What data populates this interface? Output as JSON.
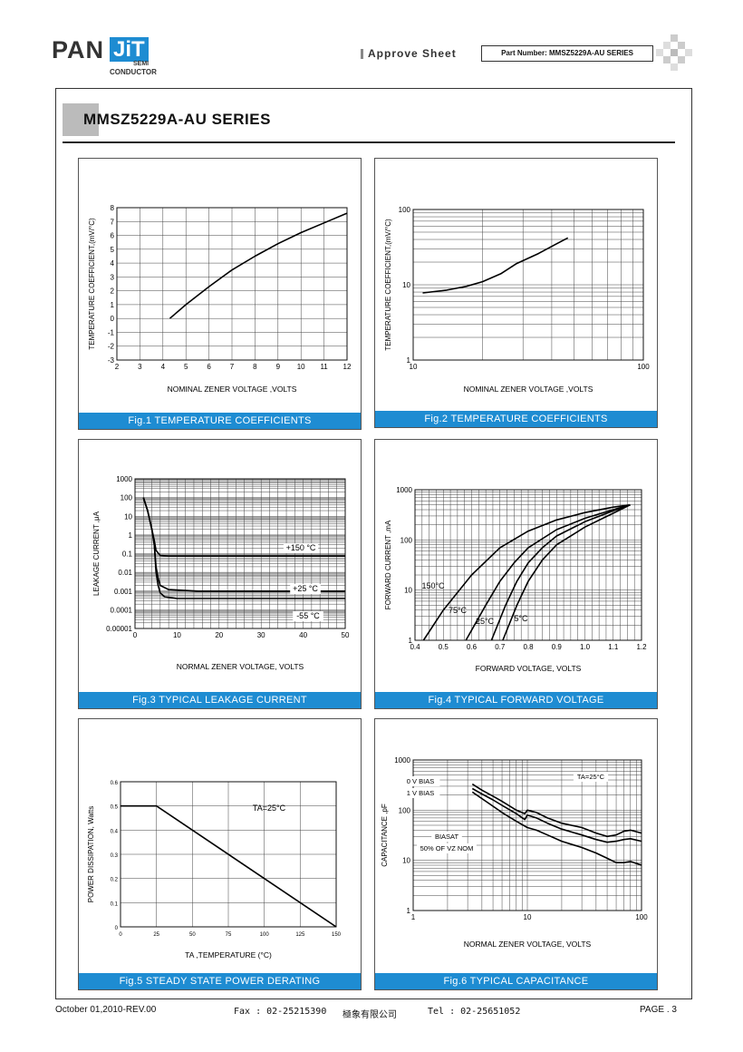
{
  "header": {
    "logo_pan": "PAN",
    "logo_jit": "JiT",
    "logo_semi": "SEMI",
    "logo_conductor": "CONDUCTOR",
    "approve_sheet": "Approve Sheet",
    "part_number": "Part Number: MMSZ5229A-AU SERIES"
  },
  "page_title": "MMSZ5229A-AU SERIES",
  "figures": [
    {
      "caption": "Fig.1 TEMPERATURE COEFFICIENTS",
      "xlabel": "NOMINAL ZENER VOLTAGE ,VOLTS",
      "ylabel": "TEMPERATURE COEFFICIENT,(mV/°C)"
    },
    {
      "caption": "Fig.2 TEMPERATURE COEFFICIENTS",
      "xlabel": "NOMINAL ZENER VOLTAGE ,VOLTS",
      "ylabel": "TEMPERATURE COEFFICIENT,(mV/°C)"
    },
    {
      "caption": "Fig.3 TYPICAL LEAKAGE CURRENT",
      "xlabel": "NORMAL ZENER VOLTAGE, VOLTS",
      "ylabel": "LEAKAGE CURRENT ,μA"
    },
    {
      "caption": "Fig.4 TYPICAL FORWARD VOLTAGE",
      "xlabel": "FORWARD VOLTAGE, VOLTS",
      "ylabel": "FORWARD CURRENT ,mA"
    },
    {
      "caption": "Fig.5 STEADY STATE POWER DERATING",
      "xlabel": "TA ,TEMPERATURE (°C)",
      "ylabel": "POWER DISSIPATION, Watts"
    },
    {
      "caption": "Fig.6 TYPICAL CAPACITANCE",
      "xlabel": "NORMAL ZENER VOLTAGE, VOLTS",
      "ylabel": "CAPACITANCE ,pF"
    }
  ],
  "chart_data": [
    {
      "type": "line",
      "xlim": [
        2,
        12
      ],
      "ylim": [
        -3,
        8
      ],
      "xticks": [
        "2",
        "3",
        "4",
        "5",
        "6",
        "7",
        "8",
        "9",
        "10",
        "11",
        "12"
      ],
      "yticks": [
        "-3",
        "-2",
        "-1",
        "0",
        "1",
        "2",
        "3",
        "4",
        "5",
        "6",
        "7",
        "8"
      ],
      "series": [
        {
          "x": [
            4.3,
            5,
            6,
            7,
            8,
            9,
            10,
            11,
            12
          ],
          "y": [
            0,
            1.0,
            2.3,
            3.5,
            4.5,
            5.4,
            6.2,
            6.9,
            7.6
          ]
        }
      ]
    },
    {
      "type": "line",
      "xscale": "log",
      "yscale": "log",
      "xlim": [
        10,
        100
      ],
      "ylim": [
        1,
        100
      ],
      "xticks": [
        "10",
        "100"
      ],
      "yticks": [
        "1",
        "10",
        "100"
      ],
      "series": [
        {
          "x": [
            11,
            14,
            17,
            20,
            24,
            28,
            35,
            42,
            47
          ],
          "y": [
            7.8,
            8.5,
            9.5,
            11,
            14,
            19,
            26,
            35,
            42
          ]
        }
      ]
    },
    {
      "type": "line",
      "yscale": "log",
      "xlim": [
        0,
        50
      ],
      "ylim": [
        1e-05,
        1000
      ],
      "xticks": [
        "0",
        "10",
        "20",
        "30",
        "40",
        "50"
      ],
      "yticks": [
        "0.00001",
        "0.0001",
        "0.001",
        "0.01",
        "0.1",
        "1",
        "10",
        "100",
        "1000"
      ],
      "annotations": [
        "+150 °C",
        "+25 °C",
        "-55 °C"
      ],
      "series": [
        {
          "x": [
            2,
            3,
            4,
            4.6,
            5,
            6,
            8,
            15,
            30,
            50
          ],
          "y": [
            100,
            20,
            2,
            0.5,
            0.15,
            0.08,
            0.075,
            0.075,
            0.075,
            0.075
          ]
        },
        {
          "x": [
            2,
            3,
            4,
            4.6,
            5,
            5.5,
            6,
            8,
            15,
            30,
            50
          ],
          "y": [
            100,
            20,
            2,
            0.3,
            0.02,
            0.005,
            0.002,
            0.0012,
            0.001,
            0.001,
            0.001
          ]
        },
        {
          "x": [
            2,
            3,
            4,
            4.6,
            5,
            5.5,
            6,
            7,
            10,
            20,
            50
          ],
          "y": [
            100,
            20,
            2,
            0.3,
            0.01,
            0.002,
            0.0008,
            0.0005,
            0.0004,
            0.0004,
            0.0004
          ]
        }
      ]
    },
    {
      "type": "line",
      "yscale": "log",
      "xlim": [
        0.4,
        1.2
      ],
      "ylim": [
        1,
        1000
      ],
      "xticks": [
        "0.4",
        "0.5",
        "0.6",
        "0.7",
        "0.8",
        "0.9",
        "1.0",
        "1.1",
        "1.2"
      ],
      "yticks": [
        "1",
        "10",
        "100",
        "1000"
      ],
      "annotations": [
        "150°C",
        "75°C",
        "25°C",
        "5°C"
      ],
      "series": [
        {
          "x": [
            0.43,
            0.5,
            0.6,
            0.7,
            0.8,
            0.9,
            1.0,
            1.1,
            1.16
          ],
          "y": [
            1,
            4,
            20,
            70,
            150,
            250,
            350,
            450,
            500
          ]
        },
        {
          "x": [
            0.58,
            0.65,
            0.7,
            0.75,
            0.8,
            0.9,
            1.0,
            1.1,
            1.16
          ],
          "y": [
            1,
            5,
            15,
            35,
            70,
            160,
            270,
            400,
            500
          ]
        },
        {
          "x": [
            0.67,
            0.72,
            0.76,
            0.8,
            0.85,
            0.9,
            1.0,
            1.1,
            1.16
          ],
          "y": [
            1,
            5,
            15,
            35,
            70,
            120,
            230,
            380,
            500
          ]
        },
        {
          "x": [
            0.71,
            0.76,
            0.8,
            0.85,
            0.9,
            1.0,
            1.1,
            1.16
          ],
          "y": [
            1,
            5,
            15,
            40,
            80,
            180,
            340,
            500
          ]
        }
      ]
    },
    {
      "type": "line",
      "xlim": [
        0,
        150
      ],
      "ylim": [
        0,
        0.6
      ],
      "xticks": [
        "0",
        "25",
        "50",
        "75",
        "100",
        "125",
        "150"
      ],
      "yticks": [
        "0",
        "0.1",
        "0.2",
        "0.3",
        "0.4",
        "0.5",
        "0.6"
      ],
      "annotations": [
        "TA=25°C"
      ],
      "series": [
        {
          "x": [
            0,
            25,
            150
          ],
          "y": [
            0.5,
            0.5,
            0
          ]
        }
      ]
    },
    {
      "type": "line",
      "xscale": "log",
      "yscale": "log",
      "xlim": [
        1,
        100
      ],
      "ylim": [
        1,
        1000
      ],
      "xticks": [
        "1",
        "10",
        "100"
      ],
      "yticks": [
        "1",
        "10",
        "100",
        "1000"
      ],
      "annotations": [
        "TA=25°C",
        "0 V BIAS",
        "1 V BIAS",
        "BIASAT",
        "50% OF VZ NOM"
      ],
      "series": [
        {
          "x": [
            3.3,
            4,
            5,
            6,
            8,
            9.5,
            10,
            12,
            15,
            20,
            30,
            40,
            50,
            60,
            70,
            80,
            100
          ],
          "y": [
            330,
            250,
            190,
            150,
            100,
            85,
            100,
            90,
            70,
            55,
            45,
            35,
            30,
            32,
            38,
            40,
            35
          ]
        },
        {
          "x": [
            3.3,
            4,
            5,
            6,
            8,
            9.5,
            10,
            12,
            15,
            20,
            30,
            40,
            50,
            60,
            70,
            80,
            100
          ],
          "y": [
            270,
            210,
            160,
            125,
            85,
            65,
            80,
            70,
            55,
            42,
            32,
            26,
            23,
            24,
            26,
            27,
            24
          ]
        },
        {
          "x": [
            3.3,
            4,
            5,
            6,
            8,
            10,
            12,
            15,
            20,
            30,
            40,
            50,
            60,
            70,
            80,
            100
          ],
          "y": [
            230,
            170,
            120,
            90,
            60,
            45,
            40,
            32,
            24,
            18,
            14,
            11,
            9,
            9,
            9.5,
            8
          ]
        }
      ]
    }
  ],
  "footer": {
    "date": "October 01,2010-REV.00",
    "fax": "Fax : 02-25215390",
    "company": "極象有限公司",
    "tel": "Tel : 02-25651052",
    "page": "PAGE . 3"
  }
}
